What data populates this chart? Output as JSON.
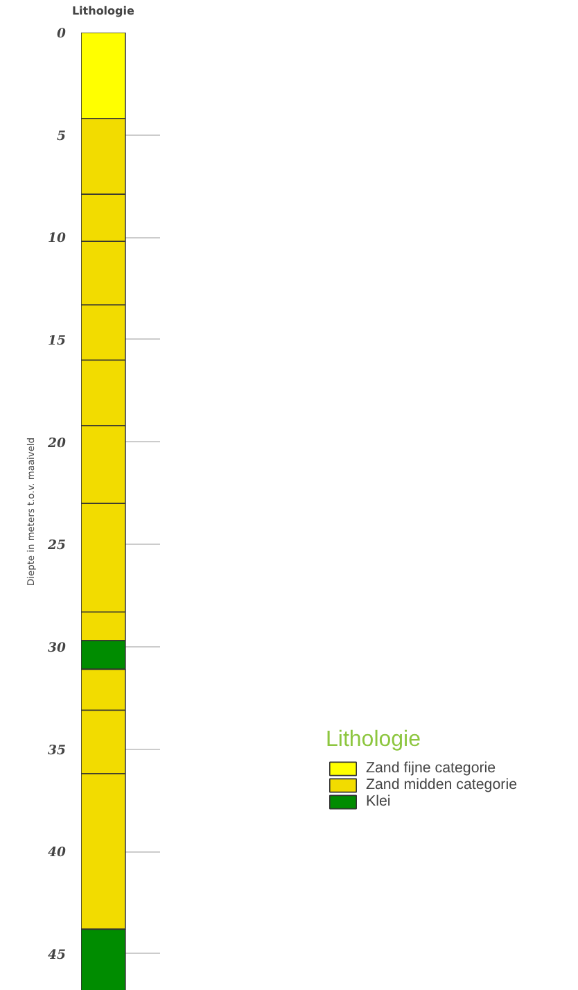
{
  "chart_data": {
    "type": "bar",
    "stacked": true,
    "categories": [
      "Lithologie"
    ],
    "ylabel": "Diepte in meters t.o.v. maaiveld",
    "legend_title": "Lithologie",
    "ylim": [
      46.8,
      0
    ],
    "yticks": [
      0,
      5,
      10,
      15,
      20,
      25,
      30,
      35,
      40,
      45
    ],
    "grid": "y",
    "legend": "right",
    "series": [
      {
        "name": "Zand fijne categorie",
        "color": "#ffff00",
        "values": [
          4.2
        ]
      },
      {
        "name": "Zand midden categorie",
        "color": "#f2dc00",
        "values": [
          3.7
        ]
      },
      {
        "color": "#f2dc00",
        "values": [
          2.3
        ]
      },
      {
        "color": "#f2dc00",
        "values": [
          3.1
        ]
      },
      {
        "color": "#f2dc00",
        "values": [
          2.7
        ]
      },
      {
        "color": "#f2dc00",
        "values": [
          3.2
        ]
      },
      {
        "color": "#f2dc00",
        "values": [
          3.8
        ]
      },
      {
        "color": "#f2dc00",
        "values": [
          5.3
        ]
      },
      {
        "color": "#f2dc00",
        "values": [
          1.4
        ]
      },
      {
        "name": "Klei",
        "color": "#008c00",
        "values": [
          1.4
        ]
      },
      {
        "color": "#f2dc00",
        "values": [
          2.0
        ]
      },
      {
        "color": "#f2dc00",
        "values": [
          3.1
        ]
      },
      {
        "color": "#f2dc00",
        "values": [
          7.6
        ]
      },
      {
        "color": "#008c00",
        "values": [
          3.0
        ]
      }
    ]
  }
}
